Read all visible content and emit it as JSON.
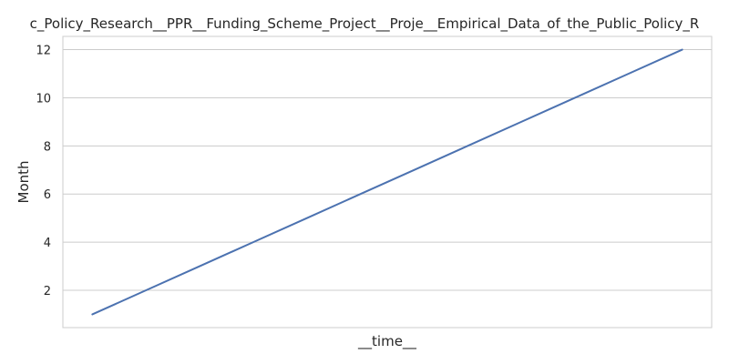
{
  "chart_data": {
    "type": "line",
    "title": "c_Policy_Research__PPR__Funding_Scheme_Project__Proje__Empirical_Data_of_the_Public_Policy_R",
    "xlabel": "__time__",
    "ylabel": "Month",
    "x": [
      1,
      2,
      3,
      4,
      5,
      6,
      7,
      8,
      9,
      10,
      11,
      12
    ],
    "series": [
      {
        "values": [
          1,
          2,
          3,
          4,
          5,
          6,
          7,
          8,
          9,
          10,
          11,
          12
        ]
      }
    ],
    "y_ticks": [
      "2",
      "4",
      "6",
      "8",
      "10",
      "12"
    ],
    "ylim": [
      0.45,
      12.55
    ],
    "xlim": [
      0.45,
      12.55
    ],
    "grid": "horizontal",
    "x_tick_labels_visible": false,
    "colors": {
      "line": "#4c72b0",
      "grid": "#cccccc",
      "frame": "#cccccc",
      "text": "#262626"
    }
  }
}
